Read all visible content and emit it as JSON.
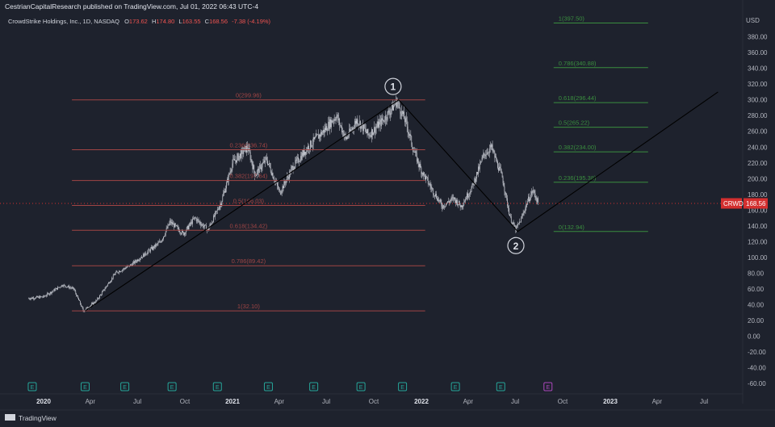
{
  "header": {
    "published": "CestrianCapitalResearch published on TradingView.com, Jul 01, 2022 06:43 UTC-4",
    "symbol": "CrowdStrike Holdings, Inc., 1D, NASDAQ",
    "open_label": "O",
    "open": "173.62",
    "high_label": "H",
    "high": "174.80",
    "low_label": "L",
    "low": "163.55",
    "close_label": "C",
    "close": "168.56",
    "change": "-7.38 (-4.19%)"
  },
  "currency": "USD",
  "price_label": {
    "ticker": "CRWD",
    "price": "168.56"
  },
  "footer": {
    "brand": "TradingView"
  },
  "colors": {
    "background": "#1e222d",
    "candle": "#d1d4dc",
    "fib_left": "#8b2a2a",
    "fib_right": "#2e7d32",
    "trend": "#1a1a1a",
    "price_badge": "#d32f2f",
    "earnings_green": "#26a69a",
    "earnings_future": "#ab47bc"
  },
  "chart_data": {
    "type": "candlestick",
    "yaxis_ticks": [
      "380.00",
      "360.00",
      "340.00",
      "320.00",
      "300.00",
      "280.00",
      "260.00",
      "240.00",
      "220.00",
      "200.00",
      "180.00",
      "160.00",
      "140.00",
      "120.00",
      "100.00",
      "80.00",
      "60.00",
      "40.00",
      "20.00",
      "0.00",
      "-20.00",
      "-40.00",
      "-60.00"
    ],
    "ylim": [
      -70,
      400
    ],
    "xaxis_ticks": [
      "2020",
      "Apr",
      "Jul",
      "Oct",
      "2021",
      "Apr",
      "Jul",
      "Oct",
      "2022",
      "Apr",
      "Jul",
      "Oct",
      "2023",
      "Apr",
      "Jul"
    ],
    "xaxis_bold": [
      "2020",
      "2021",
      "2022",
      "2023"
    ],
    "price_path": [
      [
        2019.92,
        48
      ],
      [
        2020.0,
        50
      ],
      [
        2020.1,
        65
      ],
      [
        2020.16,
        60
      ],
      [
        2020.21,
        32
      ],
      [
        2020.28,
        45
      ],
      [
        2020.38,
        80
      ],
      [
        2020.46,
        90
      ],
      [
        2020.54,
        105
      ],
      [
        2020.62,
        120
      ],
      [
        2020.67,
        145
      ],
      [
        2020.74,
        130
      ],
      [
        2020.8,
        150
      ],
      [
        2020.87,
        135
      ],
      [
        2020.94,
        170
      ],
      [
        2021.0,
        220
      ],
      [
        2021.08,
        240
      ],
      [
        2021.12,
        205
      ],
      [
        2021.18,
        225
      ],
      [
        2021.25,
        182
      ],
      [
        2021.32,
        215
      ],
      [
        2021.4,
        240
      ],
      [
        2021.48,
        260
      ],
      [
        2021.55,
        280
      ],
      [
        2021.6,
        250
      ],
      [
        2021.66,
        275
      ],
      [
        2021.72,
        255
      ],
      [
        2021.8,
        275
      ],
      [
        2021.87,
        298
      ],
      [
        2021.92,
        270
      ],
      [
        2021.96,
        235
      ],
      [
        2022.0,
        210
      ],
      [
        2022.06,
        185
      ],
      [
        2022.11,
        165
      ],
      [
        2022.17,
        175
      ],
      [
        2022.21,
        165
      ],
      [
        2022.27,
        190
      ],
      [
        2022.33,
        230
      ],
      [
        2022.37,
        240
      ],
      [
        2022.43,
        200
      ],
      [
        2022.47,
        150
      ],
      [
        2022.5,
        135
      ],
      [
        2022.53,
        150
      ],
      [
        2022.56,
        170
      ],
      [
        2022.59,
        185
      ],
      [
        2022.62,
        168.56
      ]
    ],
    "fib_left": {
      "x_range": [
        2020.15,
        2022.02
      ],
      "levels": [
        {
          "label": "0(299.96)",
          "value": 299.96
        },
        {
          "label": "0.236(236.74)",
          "value": 236.74
        },
        {
          "label": "0.382(197.64)",
          "value": 197.64
        },
        {
          "label": "0.5(166.03)",
          "value": 166.03
        },
        {
          "label": "0.618(134.42)",
          "value": 134.42
        },
        {
          "label": "0.786(89.42)",
          "value": 89.42
        },
        {
          "label": "1(32.10)",
          "value": 32.1
        }
      ]
    },
    "fib_right": {
      "x_range": [
        2022.7,
        2023.2
      ],
      "levels": [
        {
          "label": "1(397.50)",
          "value": 397.5
        },
        {
          "label": "0.786(340.88)",
          "value": 340.88
        },
        {
          "label": "0.618(296.44)",
          "value": 296.44
        },
        {
          "label": "0.5(265.22)",
          "value": 265.22
        },
        {
          "label": "0.382(234.00)",
          "value": 234.0
        },
        {
          "label": "0.236(195.38)",
          "value": 195.38
        },
        {
          "label": "0(132.94)",
          "value": 132.94
        }
      ]
    },
    "trend_line": [
      [
        2020.22,
        32.1
      ],
      [
        2021.88,
        299.96
      ],
      [
        2022.51,
        132.94
      ],
      [
        2023.57,
        310
      ]
    ],
    "wave_labels": [
      {
        "label": "1",
        "x": 2021.85,
        "y": 317
      },
      {
        "label": "2",
        "x": 2022.5,
        "y": 115
      }
    ],
    "earnings": [
      {
        "label": "E",
        "x": 2019.94
      },
      {
        "label": "E",
        "x": 2020.22
      },
      {
        "label": "E",
        "x": 2020.43
      },
      {
        "label": "E",
        "x": 2020.68
      },
      {
        "label": "E",
        "x": 2020.92
      },
      {
        "label": "E",
        "x": 2021.19
      },
      {
        "label": "E",
        "x": 2021.43
      },
      {
        "label": "E",
        "x": 2021.68
      },
      {
        "label": "E",
        "x": 2021.9
      },
      {
        "label": "E",
        "x": 2022.18
      },
      {
        "label": "E",
        "x": 2022.42
      },
      {
        "label": "E",
        "x": 2022.67,
        "future": true
      }
    ],
    "last_price": 168.56
  }
}
